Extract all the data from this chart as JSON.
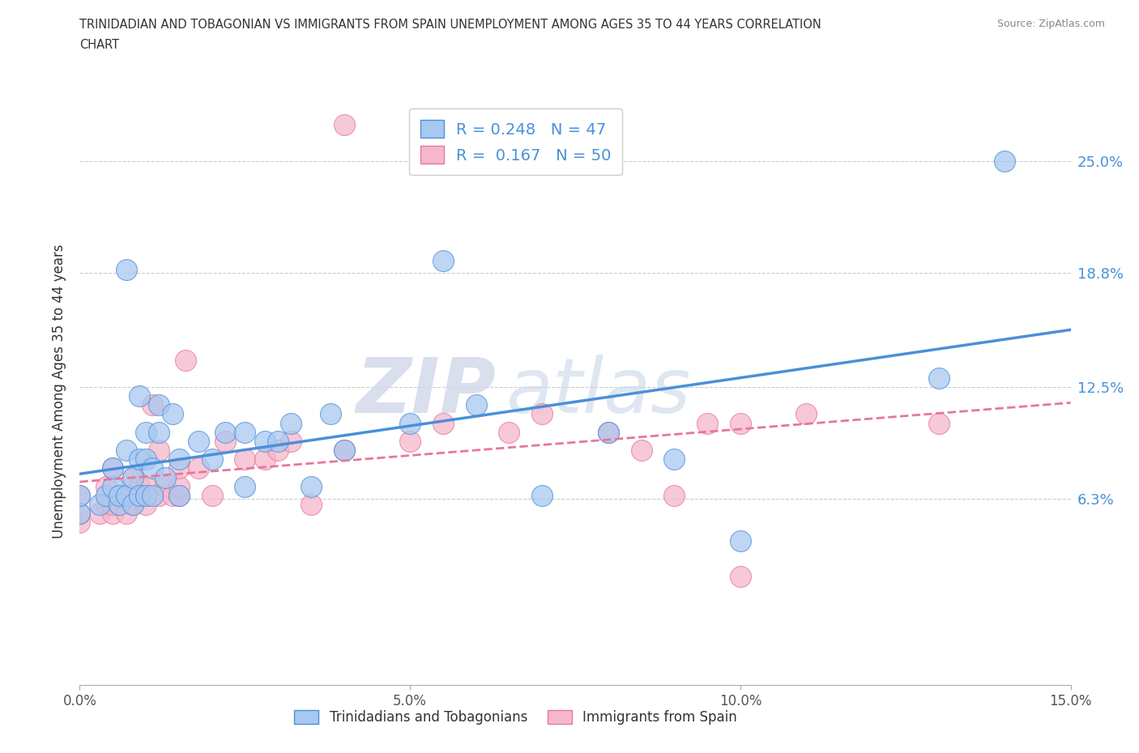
{
  "title_line1": "TRINIDADIAN AND TOBAGONIAN VS IMMIGRANTS FROM SPAIN UNEMPLOYMENT AMONG AGES 35 TO 44 YEARS CORRELATION",
  "title_line2": "CHART",
  "source": "Source: ZipAtlas.com",
  "ylabel": "Unemployment Among Ages 35 to 44 years",
  "xlim": [
    0.0,
    0.15
  ],
  "ylim": [
    -0.04,
    0.285
  ],
  "yticks": [
    0.063,
    0.125,
    0.188,
    0.25
  ],
  "ytick_labels": [
    "6.3%",
    "12.5%",
    "18.8%",
    "25.0%"
  ],
  "xticks": [
    0.0,
    0.05,
    0.1,
    0.15
  ],
  "xtick_labels": [
    "0.0%",
    "5.0%",
    "10.0%",
    "15.0%"
  ],
  "R_blue": 0.248,
  "N_blue": 47,
  "R_pink": 0.167,
  "N_pink": 50,
  "legend_labels": [
    "Trinidadians and Tobagonians",
    "Immigrants from Spain"
  ],
  "blue_color": "#a8c8f0",
  "pink_color": "#f5b8cb",
  "blue_line_color": "#4a90d9",
  "pink_line_color": "#e8769a",
  "watermark_zip": "ZIP",
  "watermark_atlas": "atlas",
  "blue_scatter_x": [
    0.0,
    0.0,
    0.003,
    0.004,
    0.005,
    0.005,
    0.006,
    0.006,
    0.007,
    0.007,
    0.007,
    0.008,
    0.008,
    0.009,
    0.009,
    0.009,
    0.01,
    0.01,
    0.01,
    0.011,
    0.011,
    0.012,
    0.012,
    0.013,
    0.014,
    0.015,
    0.015,
    0.018,
    0.02,
    0.022,
    0.025,
    0.025,
    0.028,
    0.03,
    0.032,
    0.035,
    0.038,
    0.04,
    0.05,
    0.055,
    0.06,
    0.07,
    0.08,
    0.09,
    0.1,
    0.13,
    0.14
  ],
  "blue_scatter_y": [
    0.055,
    0.065,
    0.06,
    0.065,
    0.07,
    0.08,
    0.06,
    0.065,
    0.065,
    0.09,
    0.19,
    0.06,
    0.075,
    0.065,
    0.085,
    0.12,
    0.065,
    0.085,
    0.1,
    0.065,
    0.08,
    0.1,
    0.115,
    0.075,
    0.11,
    0.065,
    0.085,
    0.095,
    0.085,
    0.1,
    0.07,
    0.1,
    0.095,
    0.095,
    0.105,
    0.07,
    0.11,
    0.09,
    0.105,
    0.195,
    0.115,
    0.065,
    0.1,
    0.085,
    0.04,
    0.13,
    0.25
  ],
  "pink_scatter_x": [
    0.0,
    0.0,
    0.0,
    0.003,
    0.004,
    0.004,
    0.005,
    0.005,
    0.005,
    0.006,
    0.006,
    0.007,
    0.007,
    0.008,
    0.008,
    0.009,
    0.009,
    0.01,
    0.01,
    0.011,
    0.012,
    0.012,
    0.013,
    0.014,
    0.015,
    0.015,
    0.015,
    0.016,
    0.018,
    0.02,
    0.022,
    0.025,
    0.028,
    0.03,
    0.032,
    0.035,
    0.04,
    0.04,
    0.05,
    0.055,
    0.065,
    0.07,
    0.08,
    0.085,
    0.09,
    0.095,
    0.1,
    0.1,
    0.11,
    0.13
  ],
  "pink_scatter_y": [
    0.05,
    0.055,
    0.065,
    0.055,
    0.06,
    0.07,
    0.055,
    0.06,
    0.08,
    0.06,
    0.065,
    0.055,
    0.065,
    0.06,
    0.075,
    0.065,
    0.07,
    0.06,
    0.07,
    0.115,
    0.065,
    0.09,
    0.07,
    0.065,
    0.065,
    0.07,
    0.08,
    0.14,
    0.08,
    0.065,
    0.095,
    0.085,
    0.085,
    0.09,
    0.095,
    0.06,
    0.09,
    0.27,
    0.095,
    0.105,
    0.1,
    0.11,
    0.1,
    0.09,
    0.065,
    0.105,
    0.02,
    0.105,
    0.11,
    0.105
  ]
}
